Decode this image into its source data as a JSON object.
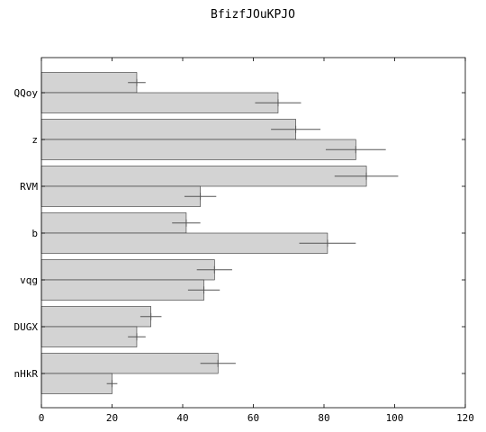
{
  "chart_data": {
    "type": "bar",
    "orientation": "horizontal",
    "title": "BfizfJOuKPJO",
    "xlabel": "",
    "ylabel": "",
    "xlim": [
      0,
      120
    ],
    "xticks": [
      0,
      20,
      40,
      60,
      80,
      100,
      120
    ],
    "grid": false,
    "categories": [
      "QQoy",
      "z",
      "RVM",
      "b",
      "vqg",
      "DUGX",
      "nHkR"
    ],
    "series": [
      {
        "values": [
          27,
          72,
          92,
          41,
          49,
          31,
          50
        ],
        "errors": [
          2.5,
          7,
          9,
          4,
          5,
          3,
          5
        ]
      },
      {
        "values": [
          67,
          89,
          45,
          81,
          46,
          27,
          20
        ],
        "errors": [
          6.5,
          8.5,
          4.5,
          8,
          4.5,
          2.5,
          1.5
        ]
      }
    ],
    "colors": {
      "bar_fill": "#d3d3d3",
      "bar_edge": "#333333",
      "error_bar": "#555555"
    }
  }
}
